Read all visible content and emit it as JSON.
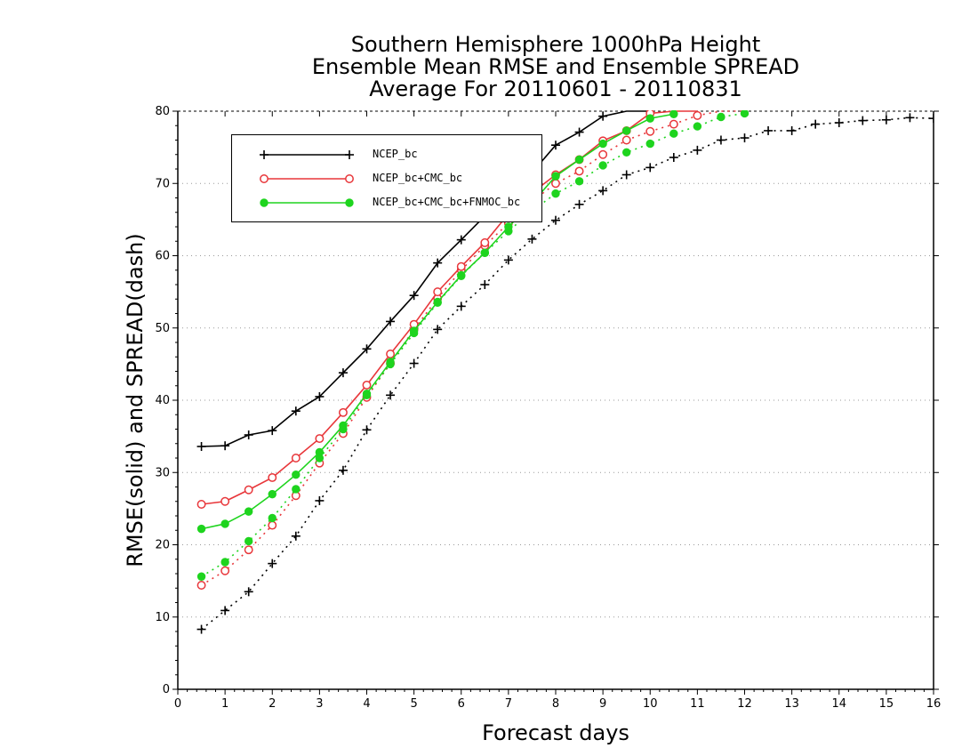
{
  "title_lines": [
    "Southern Hemisphere 1000hPa Height",
    "Ensemble Mean RMSE and Ensemble SPREAD",
    "Average For 20110601 - 20110831"
  ],
  "chart_data": {
    "type": "line",
    "xlabel": "Forecast days",
    "ylabel": "RMSE(solid) and SPREAD(dash)",
    "xlim": [
      0,
      16
    ],
    "ylim": [
      0,
      80
    ],
    "x_ticks": [
      "0",
      "1",
      "2",
      "3",
      "4",
      "5",
      "6",
      "7",
      "8",
      "9",
      "10",
      "11",
      "12",
      "13",
      "14",
      "15",
      "16"
    ],
    "y_ticks": [
      "0",
      "10",
      "20",
      "30",
      "40",
      "50",
      "60",
      "70",
      "80"
    ],
    "grid": "horizontal dotted",
    "legend_position": "top-left",
    "series": [
      {
        "name": "NCEP_bc",
        "color": "#000000",
        "marker": "plus",
        "rmse": {
          "x": [
            0.5,
            1,
            1.5,
            2,
            2.5,
            3,
            3.5,
            4,
            4.5,
            5,
            5.5,
            6,
            6.5,
            7,
            7.5,
            8,
            8.5,
            9,
            9.5,
            10
          ],
          "y": [
            33.6,
            33.7,
            35.2,
            35.8,
            38.5,
            40.5,
            43.8,
            47.1,
            50.9,
            54.5,
            59,
            62.2,
            65.5,
            68.5,
            71.5,
            75.3,
            77.1,
            79.3,
            80,
            80
          ]
        },
        "spread": {
          "x": [
            0.5,
            1,
            1.5,
            2,
            2.5,
            3,
            3.5,
            4,
            4.5,
            5,
            5.5,
            6,
            6.5,
            7,
            7.5,
            8,
            8.5,
            9,
            9.5,
            10,
            10.5,
            11,
            11.5,
            12,
            12.5,
            13,
            13.5,
            14,
            14.5,
            15,
            15.5,
            16
          ],
          "y": [
            8.3,
            10.9,
            13.5,
            17.4,
            21.2,
            26.1,
            30.3,
            35.9,
            40.7,
            45.1,
            49.8,
            53,
            56,
            59.4,
            62.3,
            64.9,
            67.1,
            69,
            71.2,
            72.2,
            73.6,
            74.6,
            76,
            76.3,
            77.3,
            77.3,
            78.2,
            78.4,
            78.7,
            78.8,
            79.1,
            79
          ]
        }
      },
      {
        "name": "NCEP_bc+CMC_bc",
        "color": "#e8363a",
        "marker": "open-circle",
        "rmse": {
          "x": [
            0.5,
            1,
            1.5,
            2,
            2.5,
            3,
            3.5,
            4,
            4.5,
            5,
            5.5,
            6,
            6.5,
            7,
            7.5,
            8,
            8.5,
            9,
            9.5,
            10,
            10.5,
            11
          ],
          "y": [
            25.6,
            26,
            27.6,
            29.3,
            32,
            34.7,
            38.3,
            42.1,
            46.4,
            50.5,
            55,
            58.5,
            61.8,
            65.8,
            68.7,
            71.2,
            73.3,
            75.9,
            77.3,
            79.7,
            80,
            80
          ]
        },
        "spread": {
          "x": [
            0.5,
            1,
            1.5,
            2,
            2.5,
            3,
            3.5,
            4,
            4.5,
            5,
            5.5,
            6,
            6.5,
            7,
            7.5,
            8,
            8.5,
            9,
            9.5,
            10,
            10.5,
            11,
            11.5,
            12
          ],
          "y": [
            14.4,
            16.4,
            19.3,
            22.7,
            26.8,
            31.3,
            35.4,
            40.4,
            45.1,
            49.8,
            54.1,
            58,
            61.4,
            64.5,
            67.5,
            70,
            71.7,
            74,
            76,
            77.2,
            78.2,
            79.4,
            80,
            80
          ]
        }
      },
      {
        "name": "NCEP_bc+CMC_bc+FNMOC_bc",
        "color": "#1ed41e",
        "marker": "filled-circle",
        "rmse": {
          "x": [
            0.5,
            1,
            1.5,
            2,
            2.5,
            3,
            3.5,
            4,
            4.5,
            5,
            5.5,
            6,
            6.5,
            7,
            7.5,
            8,
            8.5,
            9,
            9.5,
            10,
            10.5
          ],
          "y": [
            22.2,
            22.9,
            24.6,
            27,
            29.7,
            32.8,
            36.5,
            40.9,
            45.3,
            49.6,
            53.6,
            57.3,
            60.4,
            64,
            67.3,
            71,
            73.3,
            75.5,
            77.3,
            79,
            79.6
          ]
        },
        "spread": {
          "x": [
            0.5,
            1,
            1.5,
            2,
            2.5,
            3,
            3.5,
            4,
            4.5,
            5,
            5.5,
            6,
            6.5,
            7,
            7.5,
            8,
            8.5,
            9,
            9.5,
            10,
            10.5,
            11,
            11.5,
            12
          ],
          "y": [
            15.6,
            17.6,
            20.5,
            23.7,
            27.7,
            32,
            36,
            40.7,
            45,
            49.3,
            53.5,
            57.2,
            60.4,
            63.4,
            66.2,
            68.6,
            70.3,
            72.5,
            74.3,
            75.5,
            76.9,
            77.9,
            79.2,
            79.7
          ]
        }
      }
    ]
  },
  "legend": {
    "items": [
      "NCEP_bc",
      "NCEP_bc+CMC_bc",
      "NCEP_bc+CMC_bc+FNMOC_bc"
    ],
    "colors": [
      "#000000",
      "#e8363a",
      "#1ed41e"
    ],
    "markers": [
      "plus",
      "open-circle",
      "filled-circle"
    ]
  }
}
